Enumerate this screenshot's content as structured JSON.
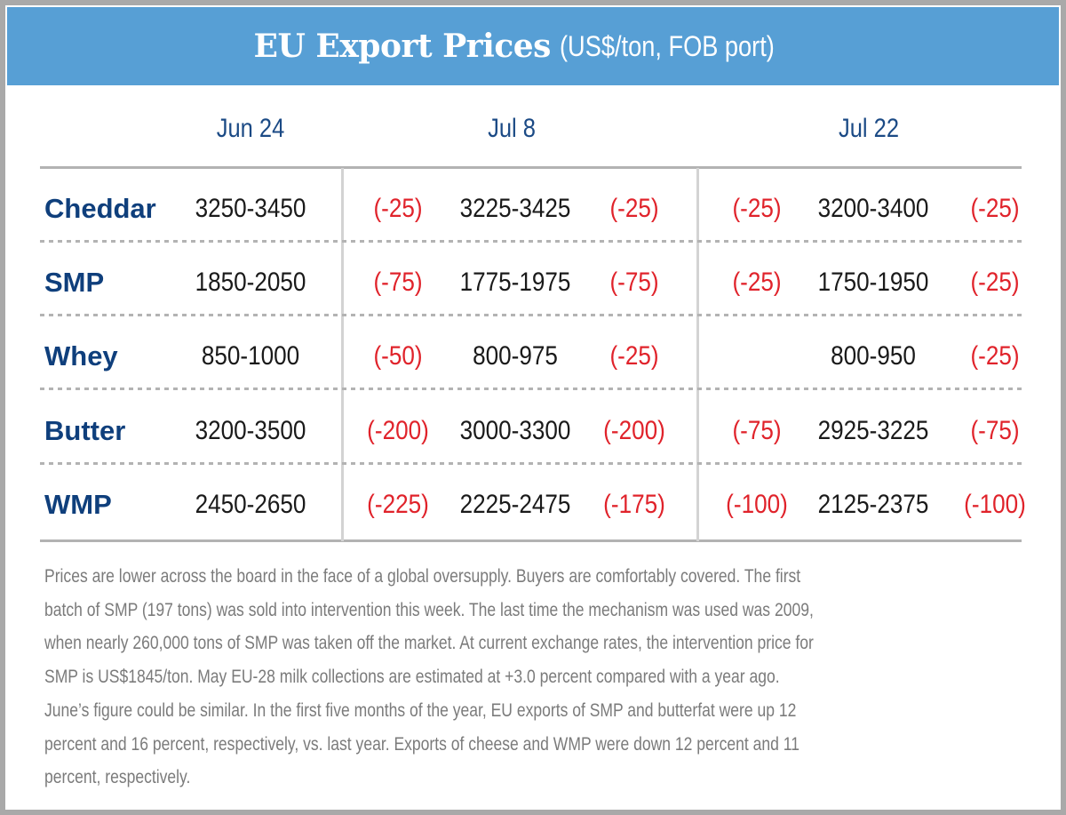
{
  "header": {
    "title": "EU Export Prices",
    "subtitle": "(US$/ton, FOB port)",
    "color": "#579fd5"
  },
  "columns": [
    "Jun 24",
    "Jul 8",
    "Jul 22"
  ],
  "rows": [
    {
      "product": "Cheddar",
      "jun24": "3250-3450",
      "jul8_change_from_prev": "(-25)",
      "jul8": "3225-3425",
      "jul8_change": "(-25)",
      "jul22_change_from_prev": "(-25)",
      "jul22": "3200-3400",
      "jul22_change": "(-25)"
    },
    {
      "product": "SMP",
      "jun24": "1850-2050",
      "jul8_change_from_prev": "(-75)",
      "jul8": "1775-1975",
      "jul8_change": "(-75)",
      "jul22_change_from_prev": "(-25)",
      "jul22": "1750-1950",
      "jul22_change": "(-25)"
    },
    {
      "product": "Whey",
      "jun24": "850-1000",
      "jul8_change_from_prev": "(-50)",
      "jul8": "800-975",
      "jul8_change": "(-25)",
      "jul22_change_from_prev": "",
      "jul22": "800-950",
      "jul22_change": "(-25)"
    },
    {
      "product": "Butter",
      "jun24": "3200-3500",
      "jul8_change_from_prev": "(-200)",
      "jul8": "3000-3300",
      "jul8_change": "(-200)",
      "jul22_change_from_prev": "(-75)",
      "jul22": "2925-3225",
      "jul22_change": "(-75)"
    },
    {
      "product": "WMP",
      "jun24": "2450-2650",
      "jul8_change_from_prev": "(-225)",
      "jul8": "2225-2475",
      "jul8_change": "(-175)",
      "jul22_change_from_prev": "(-100)",
      "jul22": "2125-2375",
      "jul22_change": "(-100)"
    }
  ],
  "colors": {
    "product": "#0f3f7c",
    "change": "#e0232b",
    "header_text": "#1b4a85"
  },
  "note_lines": [
    "Prices are lower across the board in the face of a global oversupply. Buyers are comfortably covered. The first",
    "batch of SMP (197 tons) was sold into intervention this week. The last time the mechanism was used was 2009,",
    "when nearly 260,000 tons of SMP was taken off the market. At current exchange rates, the intervention price for",
    "SMP is US$1845/ton. May EU-28 milk collections are estimated at +3.0 percent compared with a year ago.",
    "June’s figure could be similar. In the first five months of the year, EU exports of SMP and butterfat were up 12",
    "percent and 16 percent, respectively, vs. last year. Exports of cheese and WMP were down 12 percent and 11",
    "percent, respectively."
  ]
}
